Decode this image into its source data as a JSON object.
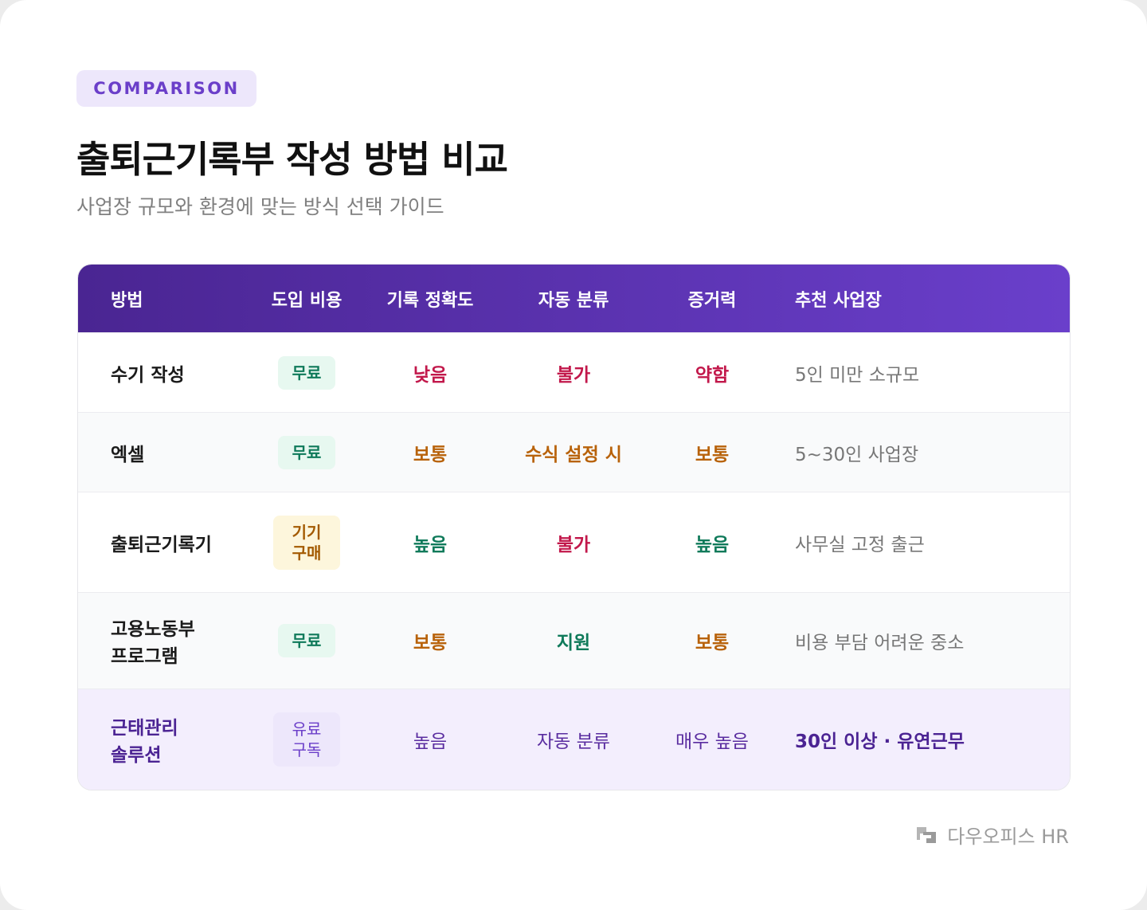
{
  "tag": "COMPARISON",
  "title": "출퇴근기록부 작성 방법 비교",
  "subtitle": "사업장 규모와 환경에 맞는 방식 선택 가이드",
  "table": {
    "headers": [
      "방법",
      "도입 비용",
      "기록 정확도",
      "자동 분류",
      "증거력",
      "추천 사업장"
    ],
    "rows": [
      [
        "수기 작성",
        "무료",
        "낮음",
        "불가",
        "약함",
        "5인 미만 소규모"
      ],
      [
        "엑셀",
        "무료",
        "보통",
        "수식 설정 시",
        "보통",
        "5~30인 사업장"
      ],
      [
        "출퇴근기록기",
        "기기 구매",
        "높음",
        "불가",
        "높음",
        "사무실 고정 출근"
      ],
      [
        "고용노동부 프로그램",
        "무료",
        "보통",
        "지원",
        "보통",
        "비용 부담 어려운 중소"
      ],
      [
        "근태관리 솔루션",
        "유료 구독",
        "높음",
        "자동 분류",
        "매우 높음",
        "30인 이상 · 유연근무"
      ]
    ]
  },
  "footer": {
    "brand": "다우오피스 HR"
  }
}
